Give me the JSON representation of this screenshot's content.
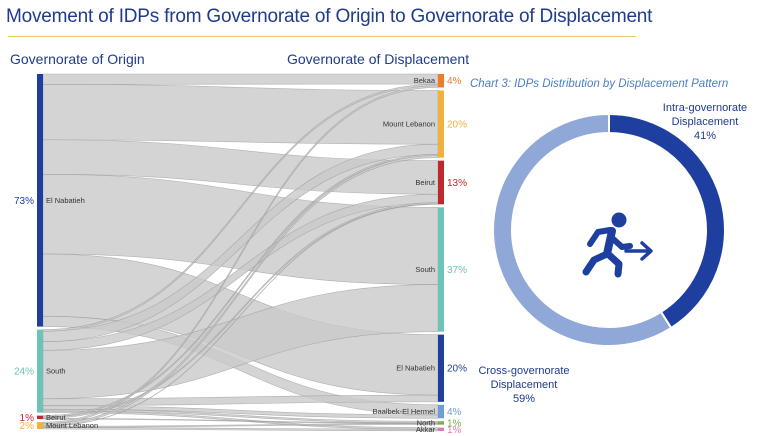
{
  "title": "Movement of IDPs from Governorate of Origin to Governorate of Displacement",
  "headers": {
    "origin": "Governorate of Origin",
    "displacement": "Governorate of Displacement"
  },
  "colors": {
    "title": "#1e3b8c",
    "flow": "#c9c9c9",
    "donut_intra": "#1e3fa0",
    "donut_cross": "#8fa8d8",
    "icon": "#1e3fa0"
  },
  "chart_data": [
    {
      "type": "sankey",
      "title": "Movement of IDPs from Governorate of Origin to Governorate of Displacement",
      "origin_nodes": [
        {
          "name": "El Nabatieh",
          "pct_label": "73%",
          "value": 73,
          "color": "#1e3fa0"
        },
        {
          "name": "South",
          "pct_label": "24%",
          "value": 24,
          "color": "#6cc4b8"
        },
        {
          "name": "Beirut",
          "pct_label": "1%",
          "value": 1,
          "color": "#c0282d"
        },
        {
          "name": "Mount Lebanon",
          "pct_label": "2%",
          "value": 2,
          "color": "#f0b23a"
        }
      ],
      "destination_nodes": [
        {
          "name": "Bekaa",
          "pct_label": "4%",
          "value": 4,
          "color": "#f07c2a"
        },
        {
          "name": "Mount Lebanon",
          "pct_label": "20%",
          "value": 20,
          "color": "#f0b23a"
        },
        {
          "name": "Beirut",
          "pct_label": "13%",
          "value": 13,
          "color": "#c0282d"
        },
        {
          "name": "South",
          "pct_label": "37%",
          "value": 37,
          "color": "#6cc4b8"
        },
        {
          "name": "El Nabatieh",
          "pct_label": "20%",
          "value": 20,
          "color": "#1e3fa0"
        },
        {
          "name": "Baalbek-El Hermel",
          "pct_label": "4%",
          "value": 4,
          "color": "#6a9fd8"
        },
        {
          "name": "North",
          "pct_label": "1%",
          "value": 1,
          "color": "#78b04a"
        },
        {
          "name": "Akkar",
          "pct_label": "1%",
          "value": 1,
          "color": "#e07ab0"
        }
      ],
      "flows": [
        {
          "from": "El Nabatieh",
          "to": "Bekaa",
          "value": 3
        },
        {
          "from": "El Nabatieh",
          "to": "Mount Lebanon",
          "value": 16
        },
        {
          "from": "El Nabatieh",
          "to": "Beirut",
          "value": 10
        },
        {
          "from": "El Nabatieh",
          "to": "South",
          "value": 23
        },
        {
          "from": "El Nabatieh",
          "to": "El Nabatieh",
          "value": 18
        },
        {
          "from": "El Nabatieh",
          "to": "Baalbek-El Hermel",
          "value": 3
        },
        {
          "from": "South",
          "to": "Bekaa",
          "value": 0.5
        },
        {
          "from": "South",
          "to": "Mount Lebanon",
          "value": 3
        },
        {
          "from": "South",
          "to": "Beirut",
          "value": 2.5
        },
        {
          "from": "South",
          "to": "South",
          "value": 14
        },
        {
          "from": "South",
          "to": "El Nabatieh",
          "value": 2
        },
        {
          "from": "South",
          "to": "Baalbek-El Hermel",
          "value": 1
        },
        {
          "from": "South",
          "to": "North",
          "value": 0.5
        },
        {
          "from": "South",
          "to": "Akkar",
          "value": 0.5
        },
        {
          "from": "Beirut",
          "to": "Mount Lebanon",
          "value": 0.4
        },
        {
          "from": "Beirut",
          "to": "Beirut",
          "value": 0.4
        },
        {
          "from": "Beirut",
          "to": "North",
          "value": 0.2
        },
        {
          "from": "Mount Lebanon",
          "to": "Bekaa",
          "value": 0.5
        },
        {
          "from": "Mount Lebanon",
          "to": "Mount Lebanon",
          "value": 0.6
        },
        {
          "from": "Mount Lebanon",
          "to": "Beirut",
          "value": 0.1
        },
        {
          "from": "Mount Lebanon",
          "to": "North",
          "value": 0.3
        },
        {
          "from": "Mount Lebanon",
          "to": "Akkar",
          "value": 0.5
        }
      ]
    },
    {
      "type": "pie",
      "title": "Chart 3: IDPs Distribution by Displacement Pattern",
      "donut": true,
      "slices": [
        {
          "label_lines": [
            "Intra-governorate",
            "Displacement"
          ],
          "pct_label": "41%",
          "value": 41
        },
        {
          "label_lines": [
            "Cross-governorate",
            "Displacement"
          ],
          "pct_label": "59%",
          "value": 59
        }
      ]
    }
  ]
}
